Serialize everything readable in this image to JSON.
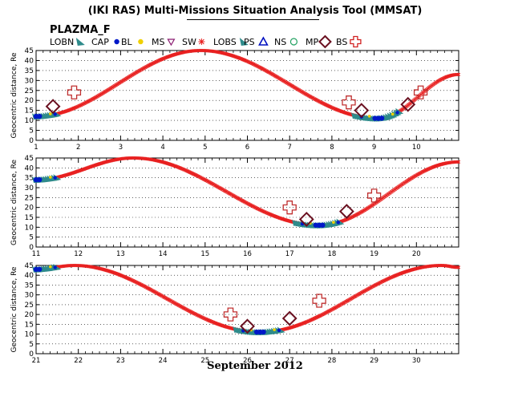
{
  "title": "(IKI RAS) Multi-Missions Situation Analysis Tool (MMSAT)",
  "subtitle": "PLAZMA_F",
  "month_label": "September 2012",
  "legend": [
    {
      "label": "LOBN",
      "icon": "teal-triangle-icon",
      "color": "#2e8b8b"
    },
    {
      "label": "CAP",
      "icon": "blue-dot-icon",
      "color": "#0018c8"
    },
    {
      "label": "BL",
      "icon": "yellow-dot-icon",
      "color": "#f0d000"
    },
    {
      "label": "MS",
      "icon": "purple-down-triangle-icon",
      "color": "#8a1a70"
    },
    {
      "label": "SW",
      "icon": "red-star-icon",
      "color": "#e82020"
    },
    {
      "label": "LOBS",
      "icon": "teal-triangle-icon",
      "color": "#2e8b8b"
    },
    {
      "label": "PS",
      "icon": "blue-triangle-icon",
      "color": "#0010c0"
    },
    {
      "label": "NS",
      "icon": "green-circle-icon",
      "color": "#20a060"
    },
    {
      "label": "MP",
      "icon": "maroon-diamond-icon",
      "color": "#6a1020"
    },
    {
      "label": "BS",
      "icon": "red-cross-icon",
      "color": "#d02020"
    }
  ],
  "colors": {
    "orbit": "#e82020",
    "magnetosheath": "#2e8b8b",
    "bow_shock": "#c03030",
    "magnetopause": "#6a1020",
    "cap": "#0018c8"
  },
  "chart_data": [
    {
      "type": "line",
      "ylabel": "Geocentric distance, Re",
      "xlim": [
        1,
        11
      ],
      "ylim": [
        0,
        45
      ],
      "x_ticks": [
        "1",
        "2",
        "3",
        "4",
        "5",
        "6",
        "7",
        "8",
        "9",
        "10"
      ],
      "y_ticks": [
        "0",
        "5",
        "10",
        "15",
        "20",
        "25",
        "30",
        "35",
        "40",
        "45"
      ],
      "grid": true,
      "series": [
        {
          "x": [
            1.0,
            4.9,
            9.1,
            11.0
          ],
          "y": [
            12,
            45,
            11,
            33
          ]
        }
      ],
      "bow_shock_crossings": [
        [
          1.9,
          24
        ],
        [
          8.4,
          19
        ],
        [
          10.1,
          24
        ]
      ],
      "magnetopause_crossings": [
        [
          1.4,
          17
        ],
        [
          8.7,
          15
        ],
        [
          9.8,
          18
        ]
      ]
    },
    {
      "type": "line",
      "ylabel": "Geocentric distance, Re",
      "xlim": [
        11,
        21
      ],
      "ylim": [
        0,
        45
      ],
      "x_ticks": [
        "11",
        "12",
        "13",
        "14",
        "15",
        "16",
        "17",
        "18",
        "19",
        "20"
      ],
      "y_ticks": [
        "0",
        "5",
        "10",
        "15",
        "20",
        "25",
        "30",
        "35",
        "40",
        "45"
      ],
      "grid": true,
      "series": [
        {
          "x": [
            11.0,
            13.3,
            17.7,
            21.0
          ],
          "y": [
            34,
            45,
            11,
            43
          ]
        }
      ],
      "bow_shock_crossings": [
        [
          17.0,
          20
        ],
        [
          19.0,
          26
        ]
      ],
      "magnetopause_crossings": [
        [
          17.4,
          14
        ],
        [
          18.35,
          18
        ]
      ]
    },
    {
      "type": "line",
      "ylabel": "Geocentric distance, Re",
      "xlim": [
        21,
        31
      ],
      "ylim": [
        0,
        45
      ],
      "x_ticks": [
        "21",
        "22",
        "23",
        "24",
        "25",
        "26",
        "27",
        "28",
        "29",
        "30"
      ],
      "y_ticks": [
        "0",
        "5",
        "10",
        "15",
        "20",
        "25",
        "30",
        "35",
        "40",
        "45"
      ],
      "grid": true,
      "series": [
        {
          "x": [
            21.0,
            21.9,
            26.3,
            30.6,
            31.0
          ],
          "y": [
            43,
            45,
            11,
            45,
            44
          ]
        }
      ],
      "bow_shock_crossings": [
        [
          25.6,
          20
        ],
        [
          27.7,
          27
        ]
      ],
      "magnetopause_crossings": [
        [
          26.0,
          14
        ],
        [
          27.0,
          18
        ]
      ]
    }
  ]
}
